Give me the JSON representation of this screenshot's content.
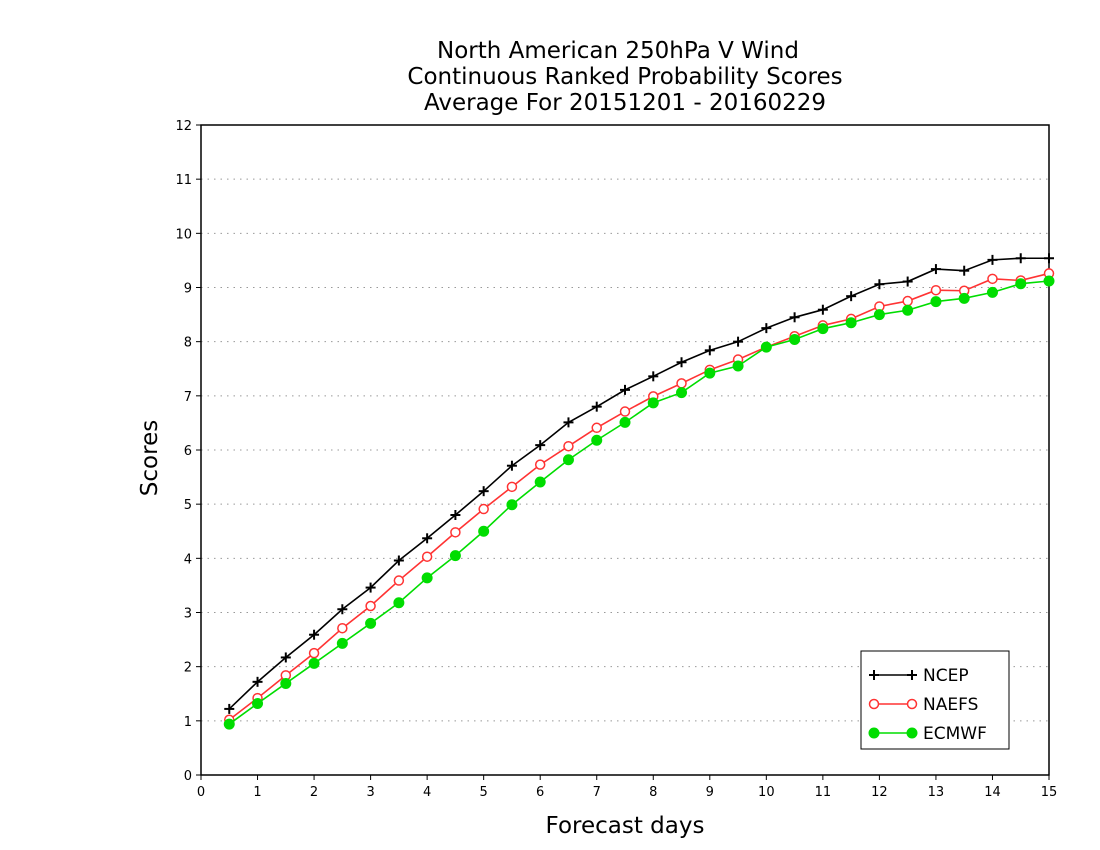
{
  "chart_data": {
    "type": "line",
    "title": [
      "North American 250hPa V Wind",
      "Continuous Ranked Probability Scores",
      "Average For 20151201 - 20160229"
    ],
    "xlabel": "Forecast days",
    "ylabel": "Scores",
    "xlim": [
      0,
      15
    ],
    "ylim": [
      0,
      12
    ],
    "xticks": [
      "0",
      "1",
      "2",
      "3",
      "4",
      "5",
      "6",
      "7",
      "8",
      "9",
      "10",
      "11",
      "12",
      "13",
      "14",
      "15"
    ],
    "yticks": [
      "0",
      "1",
      "2",
      "3",
      "4",
      "5",
      "6",
      "7",
      "8",
      "9",
      "10",
      "11",
      "12"
    ],
    "grid": "horizontal dotted",
    "legend_position": "bottom-right",
    "x": [
      0.5,
      1,
      1.5,
      2,
      2.5,
      3,
      3.5,
      4,
      4.5,
      5,
      5.5,
      6,
      6.5,
      7,
      7.5,
      8,
      8.5,
      9,
      9.5,
      10,
      10.5,
      11,
      11.5,
      12,
      12.5,
      13,
      13.5,
      14,
      14.5,
      15
    ],
    "series": [
      {
        "name": "NCEP",
        "color": "#000000",
        "marker": "plus",
        "values": [
          1.22,
          1.72,
          2.17,
          2.59,
          3.06,
          3.46,
          3.96,
          4.37,
          4.8,
          5.24,
          5.71,
          6.09,
          6.51,
          6.8,
          7.11,
          7.36,
          7.62,
          7.84,
          8.0,
          8.25,
          8.45,
          8.59,
          8.84,
          9.06,
          9.11,
          9.34,
          9.31,
          9.51,
          9.54,
          9.54
        ]
      },
      {
        "name": "NAEFS",
        "color": "#ff3333",
        "marker": "open-circle",
        "values": [
          1.02,
          1.42,
          1.84,
          2.25,
          2.71,
          3.12,
          3.59,
          4.03,
          4.48,
          4.91,
          5.32,
          5.73,
          6.07,
          6.41,
          6.71,
          6.99,
          7.23,
          7.48,
          7.67,
          7.9,
          8.1,
          8.3,
          8.42,
          8.65,
          8.75,
          8.95,
          8.94,
          9.16,
          9.13,
          9.26
        ]
      },
      {
        "name": "ECMWF",
        "color": "#00dd00",
        "marker": "filled-circle",
        "values": [
          0.94,
          1.32,
          1.69,
          2.06,
          2.43,
          2.8,
          3.18,
          3.64,
          4.05,
          4.5,
          4.99,
          5.41,
          5.82,
          6.18,
          6.51,
          6.87,
          7.06,
          7.42,
          7.55,
          7.9,
          8.04,
          8.24,
          8.35,
          8.5,
          8.58,
          8.74,
          8.8,
          8.91,
          9.07,
          9.12
        ]
      }
    ]
  }
}
